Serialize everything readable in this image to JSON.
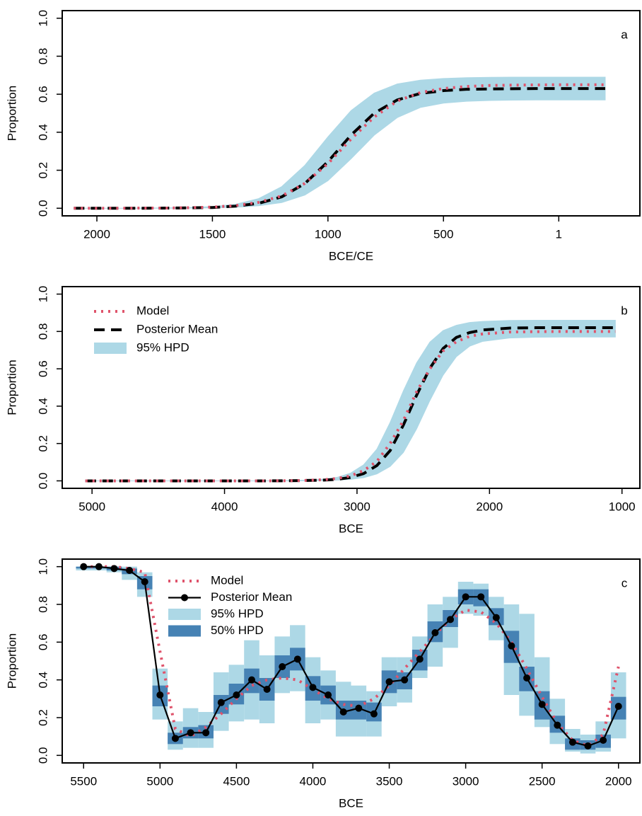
{
  "chart_data": [
    {
      "type": "line",
      "label": "a",
      "xlabel": "BCE/CE",
      "ylabel": "Proportion",
      "x": [
        2100,
        2000,
        1900,
        1800,
        1700,
        1600,
        1500,
        1400,
        1300,
        1200,
        1100,
        1000,
        900,
        800,
        700,
        600,
        500,
        400,
        300,
        200,
        100,
        0,
        -100,
        -200
      ],
      "xlim": [
        2150,
        -350
      ],
      "xticks": [
        2000,
        1500,
        1000,
        500,
        1
      ],
      "ylim": [
        -0.04,
        1.04
      ],
      "yticks": [
        {
          "value": 0,
          "label": "0.0"
        },
        0.2,
        0.4,
        0.6,
        0.8,
        {
          "value": 1,
          "label": "1.0"
        }
      ],
      "series": [
        {
          "color": "#add8e6",
          "style": "band",
          "lower": [
            0,
            0,
            0,
            0,
            0,
            0.001,
            0.002,
            0.005,
            0.013,
            0.03,
            0.069,
            0.145,
            0.26,
            0.384,
            0.477,
            0.53,
            0.553,
            0.563,
            0.567,
            0.569,
            0.57,
            0.57,
            0.57,
            0.57
          ],
          "upper": [
            0,
            0,
            0,
            0.001,
            0.002,
            0.004,
            0.009,
            0.021,
            0.051,
            0.114,
            0.226,
            0.376,
            0.514,
            0.606,
            0.654,
            0.674,
            0.683,
            0.687,
            0.689,
            0.69,
            0.69,
            0.69,
            0.69,
            0.69
          ]
        },
        {
          "color": "#000000",
          "style": "dashed",
          "values": [
            0,
            0,
            0,
            0,
            0.001,
            0.002,
            0.004,
            0.011,
            0.026,
            0.06,
            0.13,
            0.245,
            0.385,
            0.5,
            0.57,
            0.604,
            0.619,
            0.626,
            0.628,
            0.629,
            0.63,
            0.63,
            0.63,
            0.63
          ]
        },
        {
          "color": "#df536b",
          "style": "dotted",
          "values": [
            0,
            0,
            0,
            0.001,
            0.001,
            0.003,
            0.006,
            0.014,
            0.031,
            0.065,
            0.131,
            0.235,
            0.364,
            0.48,
            0.564,
            0.609,
            0.63,
            0.641,
            0.646,
            0.648,
            0.649,
            0.65,
            0.65,
            0.65
          ]
        }
      ]
    },
    {
      "type": "line",
      "label": "b",
      "xlabel": "BCE",
      "ylabel": "Proportion",
      "legend": "topleft",
      "x": [
        5050,
        4850,
        4650,
        4450,
        4250,
        4050,
        3850,
        3650,
        3450,
        3250,
        3150,
        3050,
        2950,
        2850,
        2750,
        2650,
        2550,
        2450,
        2350,
        2250,
        2150,
        2050,
        1850,
        1650,
        1450,
        1250,
        1050
      ],
      "xlim": [
        5225,
        865
      ],
      "xticks": [
        5000,
        4000,
        3000,
        2000,
        1000
      ],
      "ylim": [
        -0.04,
        1.04
      ],
      "yticks": [
        {
          "value": 0,
          "label": "0.0"
        },
        0.2,
        0.4,
        0.6,
        0.8,
        {
          "value": 1,
          "label": "1.0"
        }
      ],
      "series": [
        {
          "name": "Model",
          "color": "#df536b",
          "style": "dotted",
          "values": [
            0,
            0,
            0,
            0,
            0,
            0,
            0,
            0,
            0.001,
            0.006,
            0.013,
            0.026,
            0.055,
            0.104,
            0.2,
            0.323,
            0.477,
            0.6,
            0.696,
            0.745,
            0.774,
            0.787,
            0.797,
            0.799,
            0.8,
            0.8,
            0.8
          ]
        },
        {
          "name": "Posterior Mean",
          "color": "#000000",
          "style": "dashed",
          "values": [
            0,
            0,
            0,
            0,
            0,
            0,
            0,
            0,
            0.001,
            0.004,
            0.008,
            0.018,
            0.039,
            0.082,
            0.162,
            0.299,
            0.459,
            0.603,
            0.709,
            0.768,
            0.794,
            0.808,
            0.818,
            0.82,
            0.82,
            0.82,
            0.82
          ]
        },
        {
          "name": "95% HPD",
          "color": "#add8e6",
          "style": "band",
          "lower": [
            0,
            0,
            0,
            0,
            0,
            0,
            0,
            0,
            0,
            0.002,
            0.004,
            0.008,
            0.017,
            0.037,
            0.077,
            0.152,
            0.278,
            0.43,
            0.566,
            0.665,
            0.721,
            0.747,
            0.765,
            0.769,
            0.77,
            0.77,
            0.77
          ],
          "upper": [
            0,
            0,
            0,
            0,
            0,
            0,
            0,
            0,
            0.002,
            0.009,
            0.019,
            0.041,
            0.086,
            0.17,
            0.313,
            0.482,
            0.632,
            0.743,
            0.805,
            0.833,
            0.848,
            0.854,
            0.859,
            0.86,
            0.86,
            0.86,
            0.86
          ]
        }
      ]
    },
    {
      "type": "line",
      "label": "c",
      "xlabel": "BCE",
      "ylabel": "Proportion",
      "legend": "topleft",
      "x": [
        5500,
        5400,
        5300,
        5200,
        5100,
        5000,
        4900,
        4800,
        4700,
        4600,
        4500,
        4400,
        4300,
        4200,
        4100,
        4000,
        3900,
        3800,
        3700,
        3600,
        3500,
        3400,
        3300,
        3200,
        3100,
        3000,
        2900,
        2800,
        2700,
        2600,
        2500,
        2400,
        2300,
        2200,
        2100,
        2000
      ],
      "xlim": [
        5640,
        1860
      ],
      "xticks": [
        5500,
        5000,
        4500,
        4000,
        3500,
        3000,
        2500,
        2000
      ],
      "ylim": [
        -0.04,
        1.04
      ],
      "yticks": [
        {
          "value": 0,
          "label": "0.0"
        },
        0.2,
        0.4,
        0.6,
        0.8,
        {
          "value": 1,
          "label": "1.0"
        }
      ],
      "series": [
        {
          "name": "Model",
          "color": "#df536b",
          "style": "dotted",
          "values": [
            1,
            1,
            1,
            0.99,
            0.97,
            0.55,
            0.14,
            0.1,
            0.15,
            0.22,
            0.3,
            0.37,
            0.4,
            0.41,
            0.4,
            0.35,
            0.3,
            0.27,
            0.26,
            0.3,
            0.37,
            0.46,
            0.55,
            0.64,
            0.72,
            0.77,
            0.76,
            0.7,
            0.6,
            0.46,
            0.31,
            0.17,
            0.08,
            0.05,
            0.11,
            0.47
          ]
        },
        {
          "name": "Posterior Mean",
          "color": "#000000",
          "style": "line-points",
          "values": [
            1,
            1,
            0.99,
            0.98,
            0.92,
            0.32,
            0.09,
            0.12,
            0.12,
            0.28,
            0.32,
            0.4,
            0.35,
            0.47,
            0.51,
            0.36,
            0.32,
            0.23,
            0.25,
            0.22,
            0.39,
            0.4,
            0.51,
            0.65,
            0.72,
            0.84,
            0.84,
            0.73,
            0.58,
            0.41,
            0.27,
            0.16,
            0.07,
            0.05,
            0.08,
            0.26
          ]
        },
        {
          "name": "95% HPD",
          "color": "#add8e6",
          "style": "bar",
          "lower": [
            0.98,
            0.98,
            0.97,
            0.93,
            0.84,
            0.19,
            0.03,
            0.04,
            0.04,
            0.13,
            0.18,
            0.19,
            0.17,
            0.33,
            0.34,
            0.17,
            0.19,
            0.1,
            0.1,
            0.1,
            0.26,
            0.28,
            0.41,
            0.47,
            0.57,
            0.75,
            0.74,
            0.61,
            0.32,
            0.21,
            0.15,
            0.06,
            0.02,
            0.01,
            0.02,
            0.09
          ],
          "upper": [
            1,
            1,
            1,
            1,
            0.97,
            0.46,
            0.18,
            0.25,
            0.23,
            0.44,
            0.48,
            0.61,
            0.53,
            0.63,
            0.69,
            0.52,
            0.45,
            0.39,
            0.37,
            0.34,
            0.52,
            0.52,
            0.63,
            0.8,
            0.84,
            0.92,
            0.91,
            0.84,
            0.8,
            0.75,
            0.52,
            0.3,
            0.14,
            0.11,
            0.18,
            0.44
          ]
        },
        {
          "name": "50% HPD",
          "color": "#4682b4",
          "style": "bar",
          "lower": [
            0.99,
            0.99,
            0.98,
            0.96,
            0.88,
            0.26,
            0.06,
            0.09,
            0.09,
            0.22,
            0.27,
            0.33,
            0.29,
            0.41,
            0.45,
            0.29,
            0.27,
            0.19,
            0.19,
            0.18,
            0.33,
            0.35,
            0.45,
            0.6,
            0.68,
            0.8,
            0.79,
            0.69,
            0.49,
            0.34,
            0.19,
            0.12,
            0.03,
            0.03,
            0.04,
            0.19
          ],
          "upper": [
            1,
            1,
            1,
            0.99,
            0.95,
            0.37,
            0.12,
            0.15,
            0.16,
            0.32,
            0.38,
            0.46,
            0.41,
            0.53,
            0.57,
            0.42,
            0.37,
            0.29,
            0.29,
            0.28,
            0.45,
            0.44,
            0.56,
            0.71,
            0.77,
            0.88,
            0.88,
            0.78,
            0.66,
            0.47,
            0.34,
            0.21,
            0.09,
            0.08,
            0.11,
            0.31
          ]
        }
      ]
    }
  ]
}
